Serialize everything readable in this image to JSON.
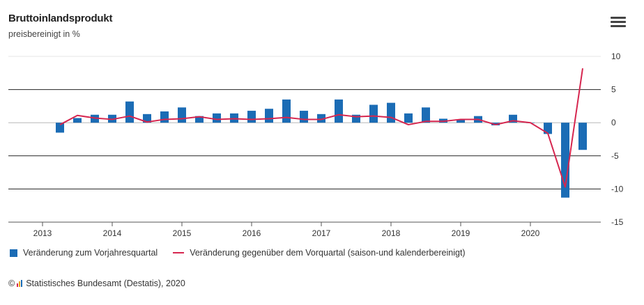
{
  "header": {
    "title": "Bruttoinlandsprodukt",
    "subtitle": "preisbereinigt in %",
    "menu_icon": "hamburger-menu-icon"
  },
  "legend": {
    "bars_label": "Veränderung zum Vorjahresquartal",
    "line_label": "Veränderung gegenüber dem Vorquartal (saison-und kalenderbereinigt)"
  },
  "credit": {
    "symbol": "©",
    "text": "Statistisches Bundesamt (Destatis), 2020",
    "logo_icon": "destatis-logo-icon"
  },
  "colors": {
    "bars": "#1b6cb5",
    "line": "#d6264f",
    "grid": "#222222"
  },
  "chart_data": {
    "type": "bar",
    "title": "Bruttoinlandsprodukt",
    "subtitle": "preisbereinigt in %",
    "x_tick_labels": [
      "2013",
      "2014",
      "2015",
      "2016",
      "2017",
      "2018",
      "2019",
      "2020"
    ],
    "y_tick_labels": [
      "10",
      "5",
      "0",
      "-5",
      "-10",
      "-15"
    ],
    "y_ticks": [
      10,
      5,
      0,
      -5,
      -10,
      -15
    ],
    "ylim": [
      -15,
      10
    ],
    "grid": true,
    "y_axis_side": "right",
    "legend_position": "bottom",
    "categories": [
      "2013 Q1",
      "2013 Q2",
      "2013 Q3",
      "2013 Q4",
      "2014 Q1",
      "2014 Q2",
      "2014 Q3",
      "2014 Q4",
      "2015 Q1",
      "2015 Q2",
      "2015 Q3",
      "2015 Q4",
      "2016 Q1",
      "2016 Q2",
      "2016 Q3",
      "2016 Q4",
      "2017 Q1",
      "2017 Q2",
      "2017 Q3",
      "2017 Q4",
      "2018 Q1",
      "2018 Q2",
      "2018 Q3",
      "2018 Q4",
      "2019 Q1",
      "2019 Q2",
      "2019 Q3",
      "2019 Q4",
      "2020 Q1",
      "2020 Q2",
      "2020 Q3"
    ],
    "series": [
      {
        "name": "Veränderung zum Vorjahresquartal",
        "type": "bar",
        "values": [
          -1.5,
          0.7,
          1.2,
          1.2,
          3.2,
          1.3,
          1.7,
          2.3,
          1.0,
          1.4,
          1.4,
          1.8,
          2.1,
          3.5,
          1.8,
          1.3,
          3.5,
          1.2,
          2.7,
          3.0,
          1.4,
          2.3,
          0.6,
          0.4,
          1.0,
          -0.4,
          1.2,
          0.0,
          -1.7,
          -11.3,
          -4.1
        ]
      },
      {
        "name": "Veränderung gegenüber dem Vorquartal (saison-und kalenderbereinigt)",
        "type": "line",
        "values": [
          -0.3,
          1.1,
          0.7,
          0.5,
          1.0,
          0.1,
          0.5,
          0.6,
          0.9,
          0.5,
          0.6,
          0.5,
          0.6,
          0.8,
          0.5,
          0.5,
          1.2,
          0.9,
          1.0,
          0.8,
          -0.3,
          0.2,
          0.2,
          0.5,
          0.5,
          -0.3,
          0.3,
          0.0,
          -1.6,
          -9.7,
          8.2
        ]
      }
    ]
  }
}
